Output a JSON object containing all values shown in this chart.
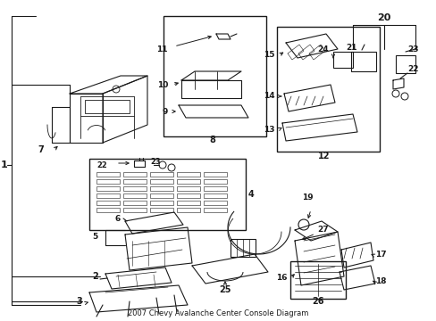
{
  "title": "2007 Chevy Avalanche Center Console Diagram",
  "bg_color": "#ffffff",
  "line_color": "#1a1a1a",
  "figsize": [
    4.89,
    3.6
  ],
  "dpi": 100
}
